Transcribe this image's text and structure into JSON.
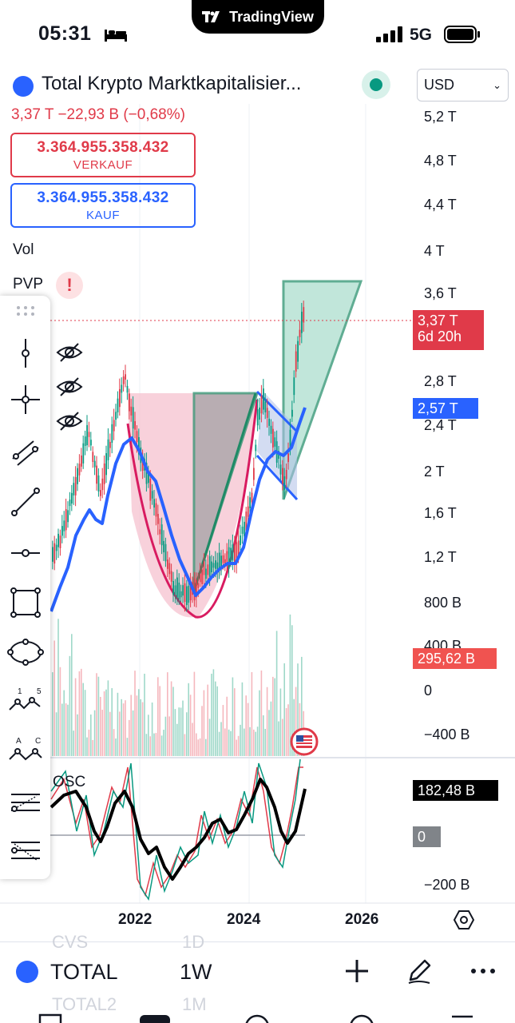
{
  "status_bar": {
    "time": "05:31",
    "network": "5G"
  },
  "app_brand": "TradingView",
  "header": {
    "title": "Total Krypto Marktkapitalisier...",
    "currency": "USD",
    "change": "3,37 T  −22,93 B (−0,68%)"
  },
  "order": {
    "sell_price": "3.364.955.358.432",
    "sell_label": "VERKAUF",
    "buy_price": "3.364.955.358.432",
    "buy_label": "KAUF"
  },
  "indicators": {
    "vol": "Vol",
    "pvp": "PVP",
    "osc": "OSC"
  },
  "price_axis": [
    "5,2 T",
    "4,8 T",
    "4,4 T",
    "4 T",
    "3,6 T",
    "2,8 T",
    "2,4 T",
    "2 T",
    "1,6 T",
    "1,2 T",
    "800 B",
    "400 B",
    "0",
    "−400 B",
    "−200 B"
  ],
  "tags": {
    "last_price": "3,37 T",
    "countdown": "6d 20h",
    "blue_line": "2,57 T",
    "volume": "295,62 B",
    "osc_value": "182,48 B",
    "osc_zero": "0"
  },
  "time_axis": [
    "2022",
    "2024",
    "2026"
  ],
  "bottom_bar": {
    "symbol": "TOTAL",
    "interval": "1W",
    "ghost_above_symbol": "CVS",
    "ghost_above_interval": "1D",
    "ghost_below_symbol": "TOTAL2",
    "ghost_below_interval": "1M"
  },
  "colors": {
    "up": "#089981",
    "down": "#e03a49",
    "accent": "#2962ff",
    "osc": "#000000"
  }
}
